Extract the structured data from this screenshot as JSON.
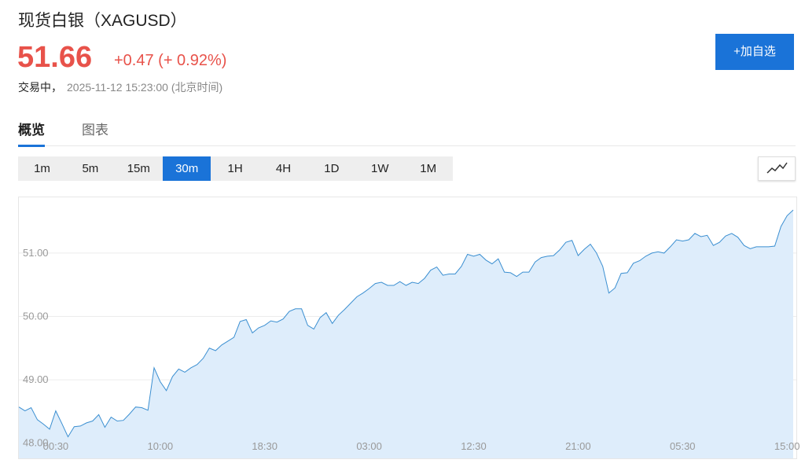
{
  "header": {
    "title": "现货白银（XAGUSD）",
    "price": "51.66",
    "change": "+0.47 (+ 0.92%)",
    "status": "交易中，",
    "timestamp": "2025-11-12 15:23:00 (北京时间)",
    "button": "+加自选"
  },
  "tabs": {
    "items": [
      "概览",
      "图表"
    ],
    "active": 0
  },
  "periods": {
    "items": [
      "1m",
      "5m",
      "15m",
      "30m",
      "1H",
      "4H",
      "1D",
      "1W",
      "1M"
    ],
    "active": 3
  },
  "chart_data": {
    "type": "area",
    "color": "#3b8fd1",
    "fill": "#deedfb",
    "grid": true,
    "categories": [
      null,
      null,
      null,
      null,
      null,
      null,
      "00:30",
      null,
      null,
      null,
      null,
      null,
      null,
      null,
      null,
      null,
      null,
      null,
      null,
      null,
      null,
      null,
      null,
      "10:00",
      null,
      null,
      null,
      null,
      null,
      null,
      null,
      null,
      null,
      null,
      null,
      null,
      null,
      null,
      null,
      null,
      "18:30",
      null,
      null,
      null,
      null,
      null,
      null,
      null,
      null,
      null,
      null,
      null,
      null,
      null,
      null,
      null,
      null,
      "03:00",
      null,
      null,
      null,
      null,
      null,
      null,
      null,
      null,
      null,
      null,
      null,
      null,
      null,
      null,
      null,
      null,
      "12:30",
      null,
      null,
      null,
      null,
      null,
      null,
      null,
      null,
      null,
      null,
      null,
      null,
      null,
      null,
      null,
      null,
      "21:00",
      null,
      null,
      null,
      null,
      null,
      null,
      null,
      null,
      null,
      null,
      null,
      null,
      null,
      null,
      null,
      null,
      "05:30",
      null,
      null,
      null,
      null,
      null,
      null,
      null,
      null,
      null,
      null,
      null,
      null,
      null,
      null,
      null,
      null,
      "15:00",
      null
    ],
    "values": [
      48.57,
      48.51,
      48.56,
      48.37,
      48.3,
      48.22,
      48.51,
      48.31,
      48.1,
      48.26,
      48.27,
      48.32,
      48.35,
      48.45,
      48.25,
      48.41,
      48.35,
      48.36,
      48.46,
      48.57,
      48.56,
      48.52,
      49.19,
      48.97,
      48.83,
      49.05,
      49.17,
      49.12,
      49.19,
      49.24,
      49.34,
      49.5,
      49.46,
      49.55,
      49.61,
      49.67,
      49.92,
      49.95,
      49.74,
      49.82,
      49.86,
      49.93,
      49.91,
      49.96,
      50.08,
      50.12,
      50.12,
      49.86,
      49.8,
      49.98,
      50.06,
      49.89,
      50.02,
      50.11,
      50.21,
      50.31,
      50.37,
      50.44,
      50.52,
      50.54,
      50.49,
      50.49,
      50.55,
      50.49,
      50.54,
      50.52,
      50.6,
      50.73,
      50.78,
      50.65,
      50.67,
      50.67,
      50.79,
      50.98,
      50.95,
      50.98,
      50.89,
      50.83,
      50.91,
      50.7,
      50.69,
      50.63,
      50.7,
      50.7,
      50.86,
      50.93,
      50.95,
      50.96,
      51.05,
      51.17,
      51.2,
      50.96,
      51.06,
      51.14,
      51.0,
      50.79,
      50.37,
      50.45,
      50.68,
      50.69,
      50.84,
      50.88,
      50.95,
      51.0,
      51.02,
      51.0,
      51.1,
      51.21,
      51.19,
      51.21,
      51.31,
      51.26,
      51.28,
      51.12,
      51.17,
      51.27,
      51.31,
      51.25,
      51.12,
      51.07,
      51.1,
      51.1,
      51.1,
      51.11,
      51.42,
      51.59,
      51.68
    ],
    "ylim": [
      47.76,
      51.88
    ],
    "yticks": [
      {
        "value": 48,
        "label": "48.00"
      },
      {
        "value": 49,
        "label": "49.00"
      },
      {
        "value": 50,
        "label": "50.00"
      },
      {
        "value": 51,
        "label": "51.00"
      }
    ]
  }
}
